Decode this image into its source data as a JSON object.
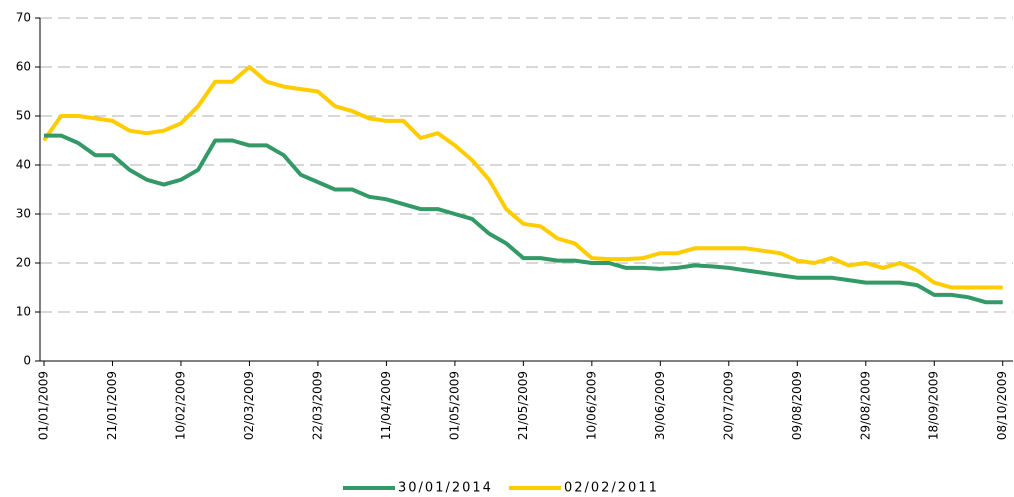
{
  "chart_data": {
    "type": "line",
    "x": [
      "01/01/2009",
      "06/01/2009",
      "11/01/2009",
      "16/01/2009",
      "21/01/2009",
      "26/01/2009",
      "31/01/2009",
      "05/02/2009",
      "10/02/2009",
      "15/02/2009",
      "20/02/2009",
      "25/02/2009",
      "02/03/2009",
      "07/03/2009",
      "12/03/2009",
      "17/03/2009",
      "22/03/2009",
      "27/03/2009",
      "01/04/2009",
      "06/04/2009",
      "11/04/2009",
      "16/04/2009",
      "21/04/2009",
      "26/04/2009",
      "01/05/2009",
      "06/05/2009",
      "11/05/2009",
      "16/05/2009",
      "21/05/2009",
      "26/05/2009",
      "31/05/2009",
      "05/06/2009",
      "10/06/2009",
      "15/06/2009",
      "20/06/2009",
      "25/06/2009",
      "30/06/2009",
      "05/07/2009",
      "10/07/2009",
      "15/07/2009",
      "20/07/2009",
      "25/07/2009",
      "30/07/2009",
      "04/08/2009",
      "09/08/2009",
      "14/08/2009",
      "19/08/2009",
      "24/08/2009",
      "29/08/2009",
      "03/09/2009",
      "08/09/2009",
      "13/09/2009",
      "18/09/2009",
      "23/09/2009",
      "28/09/2009",
      "03/10/2009",
      "08/10/2009"
    ],
    "series": [
      {
        "name": "30/01/2014",
        "color": "#339966",
        "values": [
          46,
          46,
          44.5,
          42,
          42,
          39,
          37,
          36,
          37,
          39,
          45,
          45,
          44,
          44,
          42,
          38,
          36.5,
          35,
          35,
          33.5,
          33,
          32,
          31,
          31,
          30,
          29,
          26,
          24,
          21,
          21,
          20.5,
          20.5,
          20,
          20,
          19,
          19,
          18.8,
          19,
          19.5,
          19.3,
          19,
          18.5,
          18,
          17.5,
          17,
          17,
          17,
          16.5,
          16,
          16,
          16,
          15.5,
          13.5,
          13.5,
          13,
          12,
          12
        ]
      },
      {
        "name": "02/02/2011",
        "color": "#ffcc00",
        "values": [
          45,
          50,
          50,
          49.5,
          49,
          47,
          46.5,
          47,
          48.5,
          52,
          57,
          57,
          60,
          57,
          56,
          55.5,
          55,
          52,
          51,
          49.5,
          49,
          49,
          45.5,
          46.5,
          44,
          41,
          37,
          31,
          28,
          27.5,
          25,
          24,
          21,
          20.8,
          20.8,
          21,
          22,
          22,
          23,
          23,
          23,
          23,
          22.5,
          22,
          20.5,
          20,
          21,
          19.5,
          20,
          19,
          20,
          18.5,
          16,
          15,
          15,
          15,
          15
        ]
      }
    ],
    "xlim": [
      "01/01/2009",
      "11/10/2009"
    ],
    "xticks": [
      "01/01/2009",
      "21/01/2009",
      "10/02/2009",
      "02/03/2009",
      "22/03/2009",
      "11/04/2009",
      "01/05/2009",
      "21/05/2009",
      "10/06/2009",
      "30/06/2009",
      "20/07/2009",
      "09/08/2009",
      "29/08/2009",
      "18/09/2009",
      "08/10/2009"
    ],
    "ylim": [
      0,
      70
    ],
    "yticks": [
      0,
      10,
      20,
      30,
      40,
      50,
      60,
      70
    ],
    "grid": true,
    "legend": "bottom"
  }
}
